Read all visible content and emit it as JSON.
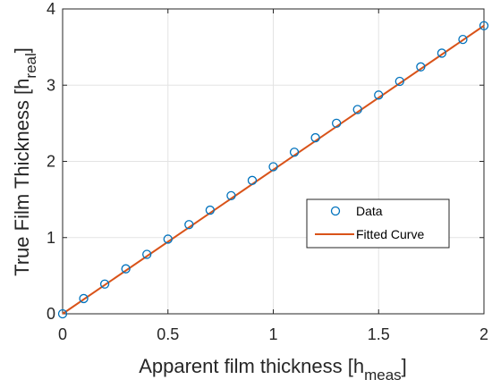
{
  "chart_data": {
    "type": "scatter",
    "title": "",
    "xlabel": "Apparent film thickness",
    "xlabel_sub": "meas",
    "ylabel": "True Film Thickness",
    "ylabel_sub": "real",
    "xlim": [
      0,
      2
    ],
    "ylim": [
      0,
      4
    ],
    "xticks": [
      0,
      0.5,
      1,
      1.5,
      2
    ],
    "yticks": [
      0,
      1,
      2,
      3,
      4
    ],
    "xtick_labels": [
      "0",
      "0.5",
      "1",
      "1.5",
      "2"
    ],
    "ytick_labels": [
      "0",
      "1",
      "2",
      "3",
      "4"
    ],
    "grid": true,
    "legend_position": "center-right",
    "series": [
      {
        "name": "Data",
        "kind": "markers",
        "color": "#0072BD",
        "x": [
          0,
          0.1,
          0.2,
          0.3,
          0.4,
          0.5,
          0.6,
          0.7,
          0.8,
          0.9,
          1.0,
          1.1,
          1.2,
          1.3,
          1.4,
          1.5,
          1.6,
          1.7,
          1.8,
          1.9,
          2.0
        ],
        "y": [
          0,
          0.2,
          0.39,
          0.59,
          0.78,
          0.98,
          1.17,
          1.36,
          1.55,
          1.75,
          1.93,
          2.12,
          2.31,
          2.5,
          2.68,
          2.87,
          3.05,
          3.24,
          3.42,
          3.6,
          3.78
        ]
      },
      {
        "name": "Fitted Curve",
        "kind": "line",
        "color": "#D95319",
        "x": [
          0,
          2
        ],
        "y": [
          0,
          3.78
        ]
      }
    ]
  }
}
